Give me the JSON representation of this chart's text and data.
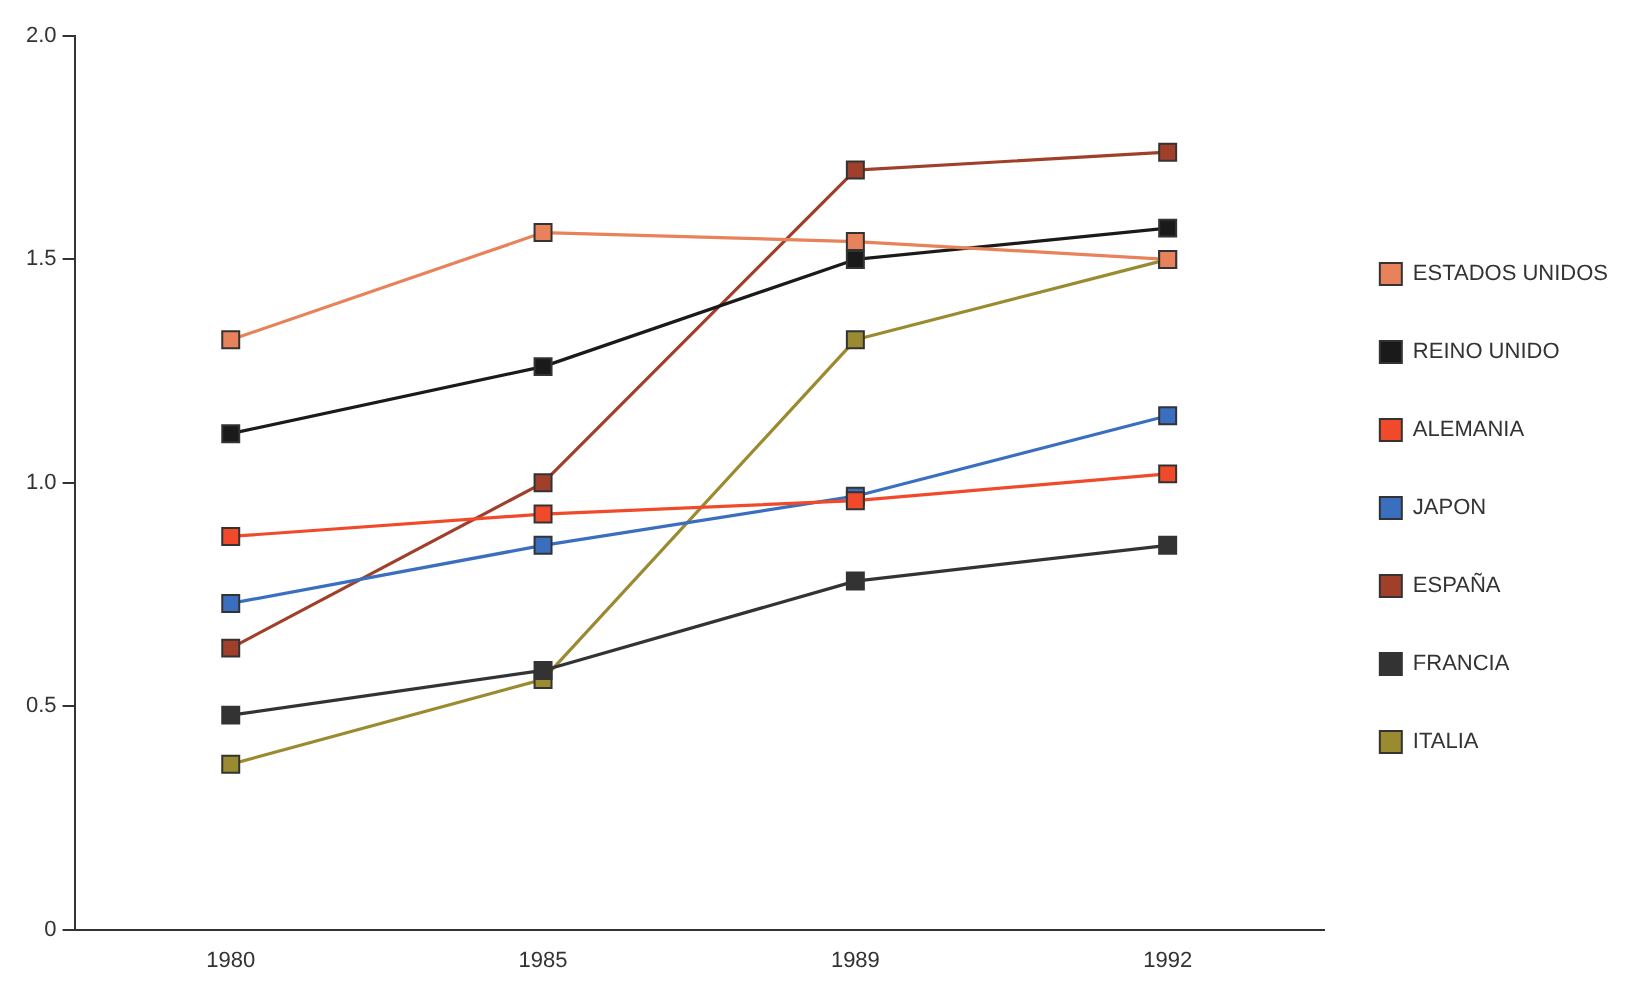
{
  "chart_data": {
    "type": "line",
    "categories": [
      "1980",
      "1985",
      "1989",
      "1992"
    ],
    "series": [
      {
        "name": "ESTADOS UNIDOS",
        "color": "#e8825a",
        "values": [
          1.32,
          1.56,
          1.54,
          1.5
        ]
      },
      {
        "name": "REINO UNIDO",
        "color": "#1a1a1a",
        "values": [
          1.11,
          1.26,
          1.5,
          1.57
        ]
      },
      {
        "name": "ALEMANIA",
        "color": "#f04a2a",
        "values": [
          0.88,
          0.93,
          0.96,
          1.02
        ]
      },
      {
        "name": "JAPON",
        "color": "#3a6fc0",
        "values": [
          0.73,
          0.86,
          0.97,
          1.15
        ]
      },
      {
        "name": "ESPAÑA",
        "color": "#a0402a",
        "values": [
          0.63,
          1.0,
          1.7,
          1.74
        ]
      },
      {
        "name": "FRANCIA",
        "color": "#333333",
        "values": [
          0.48,
          0.58,
          0.78,
          0.86
        ]
      },
      {
        "name": "ITALIA",
        "color": "#9a8a30",
        "values": [
          0.37,
          0.56,
          1.32,
          1.5
        ]
      }
    ],
    "ylim": [
      0,
      2
    ],
    "yticks": [
      0,
      {
        "value": 0.5,
        "label": "0.5"
      },
      {
        "value": 1,
        "label": "1.0"
      },
      {
        "value": 1.5,
        "label": "1.5"
      },
      {
        "value": 2,
        "label": "2.0"
      }
    ],
    "grid": false,
    "legend": "right",
    "marker": "square",
    "line_style": "solid"
  }
}
